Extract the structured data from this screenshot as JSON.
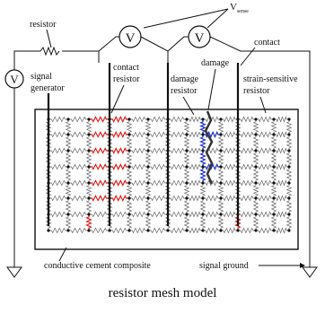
{
  "labels": {
    "resistor": "resistor",
    "v_sense": "V",
    "v_sense_sub": "sense",
    "contact": "contact",
    "signal_generator_line1": "signal",
    "signal_generator_line2": "generator",
    "contact_resistor_line1": "contact",
    "contact_resistor_line2": "resistor",
    "damage_resistor_line1": "damage",
    "damage_resistor_line2": "resistor",
    "damage": "damage",
    "strain_resistor_line1": "strain-sensitive",
    "strain_resistor_line2": "resistor",
    "composite": "conductive cement composite",
    "signal_ground": "signal ground",
    "caption": "resistor mesh model"
  },
  "meters": {
    "generator_symbol": "V",
    "sense_left_symbol": "V",
    "sense_right_symbol": "V"
  },
  "colors": {
    "wire": "#111111",
    "mesh_resistor": "#666666",
    "contact_resistor": "#e02020",
    "damage_resistor": "#2233cc",
    "crack": "#333333",
    "background": "#ffffff"
  }
}
